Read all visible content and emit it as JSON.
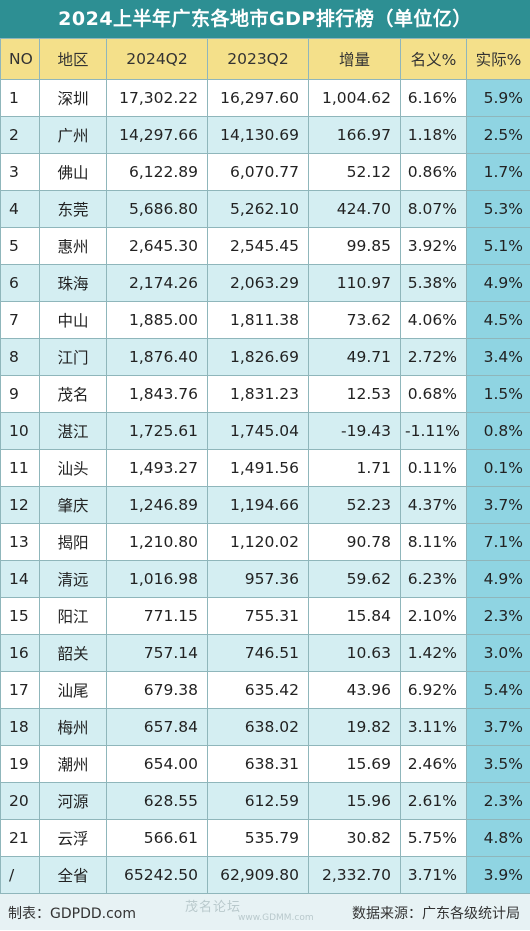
{
  "title": "2024上半年广东各地市GDP排行榜（单位亿）",
  "headers": [
    "NO",
    "地区",
    "2024Q2",
    "2023Q2",
    "增量",
    "名义%",
    "实际%"
  ],
  "rows": [
    [
      "1",
      "深圳",
      "17,302.22",
      "16,297.60",
      "1,004.62",
      "6.16%",
      "5.9%"
    ],
    [
      "2",
      "广州",
      "14,297.66",
      "14,130.69",
      "166.97",
      "1.18%",
      "2.5%"
    ],
    [
      "3",
      "佛山",
      "6,122.89",
      "6,070.77",
      "52.12",
      "0.86%",
      "1.7%"
    ],
    [
      "4",
      "东莞",
      "5,686.80",
      "5,262.10",
      "424.70",
      "8.07%",
      "5.3%"
    ],
    [
      "5",
      "惠州",
      "2,645.30",
      "2,545.45",
      "99.85",
      "3.92%",
      "5.1%"
    ],
    [
      "6",
      "珠海",
      "2,174.26",
      "2,063.29",
      "110.97",
      "5.38%",
      "4.9%"
    ],
    [
      "7",
      "中山",
      "1,885.00",
      "1,811.38",
      "73.62",
      "4.06%",
      "4.5%"
    ],
    [
      "8",
      "江门",
      "1,876.40",
      "1,826.69",
      "49.71",
      "2.72%",
      "3.4%"
    ],
    [
      "9",
      "茂名",
      "1,843.76",
      "1,831.23",
      "12.53",
      "0.68%",
      "1.5%"
    ],
    [
      "10",
      "湛江",
      "1,725.61",
      "1,745.04",
      "-19.43",
      "-1.11%",
      "0.8%"
    ],
    [
      "11",
      "汕头",
      "1,493.27",
      "1,491.56",
      "1.71",
      "0.11%",
      "0.1%"
    ],
    [
      "12",
      "肇庆",
      "1,246.89",
      "1,194.66",
      "52.23",
      "4.37%",
      "3.7%"
    ],
    [
      "13",
      "揭阳",
      "1,210.80",
      "1,120.02",
      "90.78",
      "8.11%",
      "7.1%"
    ],
    [
      "14",
      "清远",
      "1,016.98",
      "957.36",
      "59.62",
      "6.23%",
      "4.9%"
    ],
    [
      "15",
      "阳江",
      "771.15",
      "755.31",
      "15.84",
      "2.10%",
      "2.3%"
    ],
    [
      "16",
      "韶关",
      "757.14",
      "746.51",
      "10.63",
      "1.42%",
      "3.0%"
    ],
    [
      "17",
      "汕尾",
      "679.38",
      "635.42",
      "43.96",
      "6.92%",
      "5.4%"
    ],
    [
      "18",
      "梅州",
      "657.84",
      "638.02",
      "19.82",
      "3.11%",
      "3.7%"
    ],
    [
      "19",
      "潮州",
      "654.00",
      "638.31",
      "15.69",
      "2.46%",
      "3.5%"
    ],
    [
      "20",
      "河源",
      "628.55",
      "612.59",
      "15.96",
      "2.61%",
      "2.3%"
    ],
    [
      "21",
      "云浮",
      "566.61",
      "535.79",
      "30.82",
      "5.75%",
      "4.8%"
    ],
    [
      "/",
      "全省",
      "65242.50",
      "62,909.80",
      "2,332.70",
      "3.71%",
      "3.9%"
    ]
  ],
  "footer": {
    "maker": "制表：GDPDD.com",
    "source": "数据来源：广东各级统计局",
    "watermark": "茂名论坛",
    "watermark_url": "www.GDMM.com"
  },
  "colors": {
    "title_bg": "#2d8f93",
    "header_bg": "#f4e08a",
    "row_alt": "#d4eef2",
    "real_col": "#8fd4e2"
  }
}
